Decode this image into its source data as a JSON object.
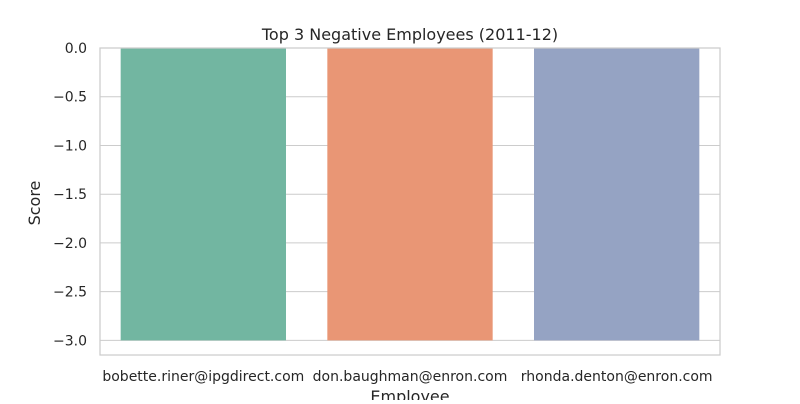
{
  "chart_data": {
    "type": "bar",
    "title": "Top 3 Negative Employees (2011-12)",
    "xlabel": "Employee",
    "ylabel": "Score",
    "categories": [
      "bobette.riner@ipgdirect.com",
      "don.baughman@enron.com",
      "rhonda.denton@enron.com"
    ],
    "values": [
      -3.0,
      -3.0,
      -3.0
    ],
    "ylim": [
      -3.15,
      0.0
    ],
    "yticks": [
      0.0,
      -0.5,
      -1.0,
      -1.5,
      -2.0,
      -2.5,
      -3.0
    ],
    "ytick_labels": [
      "0.0",
      "−0.5",
      "−1.0",
      "−1.5",
      "−2.0",
      "−2.5",
      "−3.0"
    ],
    "grid": true,
    "legend": false,
    "bar_colors": [
      "#72b6a1",
      "#e99675",
      "#95a3c3"
    ],
    "grid_color": "#cccccc",
    "frame_color": "#cccccc"
  }
}
